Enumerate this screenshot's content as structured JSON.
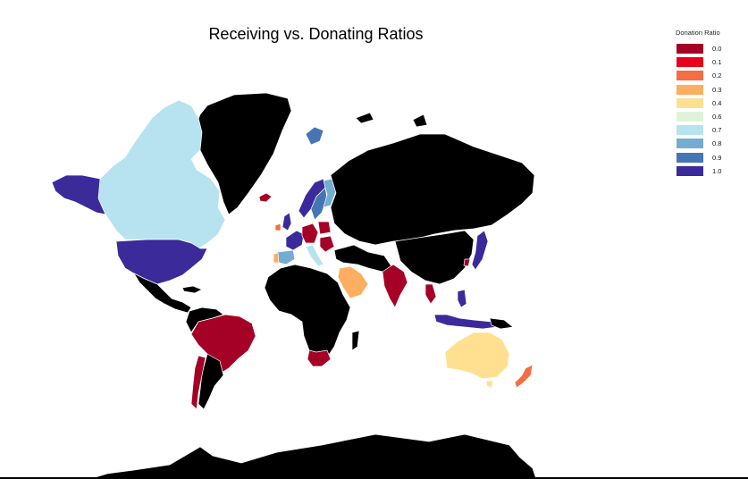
{
  "title": "Receiving vs. Donating Ratios",
  "legend": {
    "title": "Donation Ratio",
    "items": [
      {
        "label": "0.0",
        "color": "#a50026"
      },
      {
        "label": "0.1",
        "color": "#e8001c"
      },
      {
        "label": "0.2",
        "color": "#f46d43"
      },
      {
        "label": "0.3",
        "color": "#fdae61"
      },
      {
        "label": "0.4",
        "color": "#fee090"
      },
      {
        "label": "0.6",
        "color": "#e0f3d8"
      },
      {
        "label": "0.7",
        "color": "#b7e2ef"
      },
      {
        "label": "0.8",
        "color": "#74add1"
      },
      {
        "label": "0.9",
        "color": "#4575b4"
      },
      {
        "label": "1.0",
        "color": "#3a2a9a"
      }
    ]
  },
  "no_data_color": "#000000",
  "regions": [
    {
      "name": "Alaska (USA)",
      "ratio": "1.0"
    },
    {
      "name": "Canada",
      "ratio": "0.7"
    },
    {
      "name": "United States",
      "ratio": "1.0"
    },
    {
      "name": "Greenland",
      "ratio": "no data"
    },
    {
      "name": "Iceland",
      "ratio": "0.0"
    },
    {
      "name": "Mexico",
      "ratio": "no data"
    },
    {
      "name": "Brazil",
      "ratio": "0.0"
    },
    {
      "name": "Chile",
      "ratio": "0.0"
    },
    {
      "name": "Argentina",
      "ratio": "no data"
    },
    {
      "name": "Norway",
      "ratio": "1.0"
    },
    {
      "name": "Sweden",
      "ratio": "0.9"
    },
    {
      "name": "Finland",
      "ratio": "0.8"
    },
    {
      "name": "Svalbard",
      "ratio": "0.9"
    },
    {
      "name": "Ireland",
      "ratio": "0.2"
    },
    {
      "name": "United Kingdom",
      "ratio": "1.0"
    },
    {
      "name": "France",
      "ratio": "1.0"
    },
    {
      "name": "Spain",
      "ratio": "0.8"
    },
    {
      "name": "Portugal",
      "ratio": "0.3"
    },
    {
      "name": "Germany",
      "ratio": "0.0"
    },
    {
      "name": "Poland",
      "ratio": "0.0"
    },
    {
      "name": "Italy",
      "ratio": "0.7"
    },
    {
      "name": "Russia",
      "ratio": "no data"
    },
    {
      "name": "Saudi Arabia",
      "ratio": "0.3"
    },
    {
      "name": "India",
      "ratio": "0.0"
    },
    {
      "name": "Thailand",
      "ratio": "0.0"
    },
    {
      "name": "Japan",
      "ratio": "1.0"
    },
    {
      "name": "South Korea",
      "ratio": "0.0"
    },
    {
      "name": "Philippines",
      "ratio": "1.0"
    },
    {
      "name": "Indonesia",
      "ratio": "1.0"
    },
    {
      "name": "Australia",
      "ratio": "0.4"
    },
    {
      "name": "New Zealand",
      "ratio": "0.2"
    },
    {
      "name": "South Africa",
      "ratio": "0.0"
    },
    {
      "name": "Africa (other)",
      "ratio": "no data"
    },
    {
      "name": "China",
      "ratio": "no data"
    },
    {
      "name": "Antarctica",
      "ratio": "no data"
    }
  ]
}
